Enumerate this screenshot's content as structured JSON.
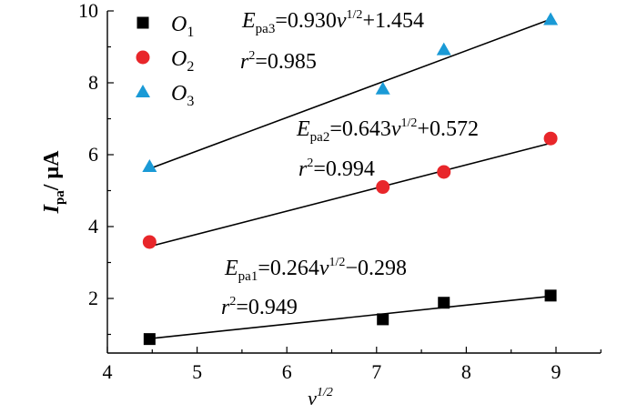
{
  "chart_data": {
    "type": "scatter",
    "xlabel": {
      "base": "v",
      "sup": "1/2"
    },
    "ylabel": {
      "base": "I",
      "sub": "pa",
      "unit": "/ μA"
    },
    "xlim": [
      4,
      9.5
    ],
    "ylim": [
      0.5,
      10
    ],
    "xticks": [
      4,
      5,
      6,
      7,
      8,
      9
    ],
    "xtick_labels": [
      "4",
      "5",
      "6",
      "7",
      "8",
      "9"
    ],
    "yticks": [
      2,
      4,
      6,
      8,
      10
    ],
    "ytick_labels": [
      "2",
      "4",
      "6",
      "8",
      "10"
    ],
    "legend_position": "top-left",
    "series": [
      {
        "name": "O1",
        "name_base": "O",
        "name_sub": "1",
        "marker": "square",
        "color": "#000000",
        "x": [
          4.47,
          7.07,
          7.75,
          8.94
        ],
        "y": [
          0.87,
          1.42,
          1.88,
          2.08
        ],
        "fit": {
          "slope": 0.264,
          "intercept": -0.298,
          "x_range": [
            4.47,
            8.94
          ]
        },
        "equation": {
          "E": "E",
          "sub": "pa1",
          "eq1": "=0.264",
          "v": "v",
          "sup": "1/2",
          "eq2": "−0.298",
          "r": "r",
          "r_sup": "2",
          "r_val": "=0.949"
        }
      },
      {
        "name": "O2",
        "name_base": "O",
        "name_sub": "2",
        "marker": "circle",
        "color": "#e8262a",
        "x": [
          4.47,
          7.07,
          7.75,
          8.94
        ],
        "y": [
          3.57,
          5.1,
          5.52,
          6.45
        ],
        "fit": {
          "slope": 0.643,
          "intercept": 0.572,
          "x_range": [
            4.47,
            8.94
          ]
        },
        "equation": {
          "E": "E",
          "sub": "pa2",
          "eq1": "=0.643",
          "v": "v",
          "sup": "1/2",
          "eq2": "+0.572",
          "r": "r",
          "r_sup": "2",
          "r_val": "=0.994"
        }
      },
      {
        "name": "O3",
        "name_base": "O",
        "name_sub": "3",
        "marker": "triangle",
        "color": "#1a9ad6",
        "x": [
          4.47,
          7.07,
          7.75,
          8.94
        ],
        "y": [
          5.67,
          7.83,
          8.92,
          9.76
        ],
        "fit": {
          "slope": 0.93,
          "intercept": 1.454,
          "x_range": [
            4.47,
            8.94
          ]
        },
        "equation": {
          "E": "E",
          "sub": "pa3",
          "eq1": "=0.930",
          "v": "v",
          "sup": "1/2",
          "eq2": "+1.454",
          "r": "r",
          "r_sup": "2",
          "r_val": "=0.985"
        }
      }
    ]
  }
}
